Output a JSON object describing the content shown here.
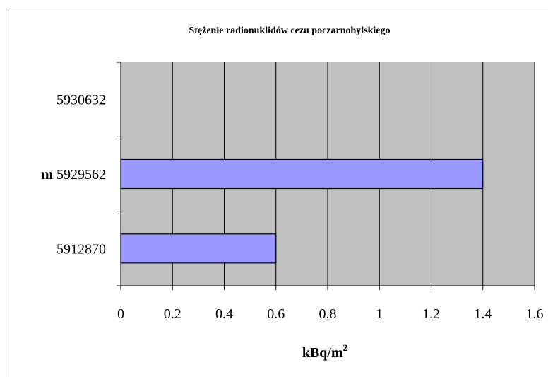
{
  "chart_data": {
    "type": "bar",
    "orientation": "horizontal",
    "title": "Stężenie radionuklidów cezu poczarnobylskiego",
    "categories": [
      "5930632",
      "5929562",
      "5912870"
    ],
    "category_prefixes": [
      "",
      "m",
      ""
    ],
    "values": [
      0,
      1.4,
      0.6
    ],
    "xlabel": "kBq/m",
    "xlabel_superscript": "2",
    "ylabel": "",
    "xlim": [
      0,
      1.6
    ],
    "xticks": [
      "0",
      "0.2",
      "0.4",
      "0.6",
      "0.8",
      "1",
      "1.2",
      "1.4",
      "1.6"
    ],
    "grid": true,
    "legend": "none",
    "colors": {
      "plot_background": "#c0c0c0",
      "bar_fill": "#9999ff",
      "bar_stroke": "#000000",
      "gridline": "#000000"
    }
  }
}
